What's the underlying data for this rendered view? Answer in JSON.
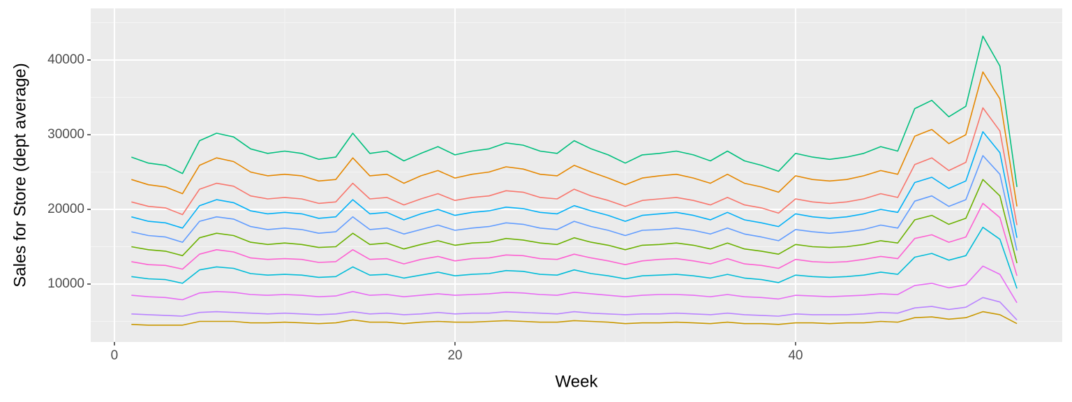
{
  "chart_data": {
    "type": "line",
    "xlabel": "Week",
    "ylabel": "Sales for Store (dept average)",
    "x": [
      1,
      2,
      3,
      4,
      5,
      6,
      7,
      8,
      9,
      10,
      11,
      12,
      13,
      14,
      15,
      16,
      17,
      18,
      19,
      20,
      21,
      22,
      23,
      24,
      25,
      26,
      27,
      28,
      29,
      30,
      31,
      32,
      33,
      34,
      35,
      36,
      37,
      38,
      39,
      40,
      41,
      42,
      43,
      44,
      45,
      46,
      47,
      48,
      49,
      50,
      51,
      52,
      53
    ],
    "xlim": [
      -1.39,
      55.66
    ],
    "ylim": [
      2243,
      46916
    ],
    "xticks": [
      0,
      20,
      40
    ],
    "yticks": [
      10000,
      20000,
      30000,
      40000
    ],
    "grid": true,
    "panel_color": "#EBEBEB",
    "series": [
      {
        "color": "#00BF7D",
        "values": [
          27000,
          26200,
          25900,
          24800,
          29200,
          30200,
          29700,
          28100,
          27500,
          27800,
          27500,
          26700,
          27000,
          30200,
          27500,
          27800,
          26500,
          27500,
          28400,
          27300,
          27800,
          28100,
          28900,
          28600,
          27800,
          27500,
          29200,
          28100,
          27300,
          26200,
          27300,
          27500,
          27800,
          27300,
          26500,
          27800,
          26500,
          25900,
          25100,
          27500,
          27000,
          26700,
          27000,
          27500,
          28400,
          27800,
          33500,
          34600,
          32400,
          33800,
          43200,
          39200,
          23000
        ]
      },
      {
        "color": "#E58700",
        "values": [
          24000,
          23300,
          23000,
          22100,
          25900,
          26900,
          26400,
          25000,
          24500,
          24700,
          24500,
          23800,
          24000,
          26900,
          24500,
          24700,
          23500,
          24500,
          25200,
          24200,
          24700,
          25000,
          25700,
          25400,
          24700,
          24500,
          25900,
          25000,
          24200,
          23300,
          24200,
          24500,
          24700,
          24200,
          23500,
          24700,
          23500,
          23000,
          22300,
          24500,
          24000,
          23800,
          24000,
          24500,
          25200,
          24700,
          29800,
          30700,
          28800,
          30000,
          38400,
          34800,
          20400
        ]
      },
      {
        "color": "#F8766D",
        "values": [
          21000,
          20400,
          20200,
          19300,
          22700,
          23500,
          23100,
          21800,
          21400,
          21600,
          21400,
          20800,
          21000,
          23500,
          21400,
          21600,
          20600,
          21400,
          22100,
          21200,
          21600,
          21800,
          22500,
          22300,
          21600,
          21400,
          22700,
          21800,
          21200,
          20400,
          21200,
          21400,
          21600,
          21200,
          20600,
          21600,
          20600,
          20200,
          19500,
          21400,
          21000,
          20800,
          21000,
          21400,
          22100,
          21600,
          26000,
          26900,
          25200,
          26300,
          33600,
          30500,
          17900
        ]
      },
      {
        "color": "#00B0F6",
        "values": [
          19000,
          18400,
          18200,
          17500,
          20500,
          21300,
          20900,
          19800,
          19400,
          19600,
          19400,
          18800,
          19000,
          21300,
          19400,
          19600,
          18600,
          19400,
          20000,
          19200,
          19600,
          19800,
          20300,
          20100,
          19600,
          19400,
          20500,
          19800,
          19200,
          18400,
          19200,
          19400,
          19600,
          19200,
          18600,
          19600,
          18600,
          18200,
          17700,
          19400,
          19000,
          18800,
          19000,
          19400,
          20000,
          19600,
          23600,
          24300,
          22800,
          23800,
          30400,
          27600,
          16200
        ]
      },
      {
        "color": "#619CFF",
        "values": [
          17000,
          16500,
          16300,
          15600,
          18400,
          19000,
          18700,
          17700,
          17300,
          17500,
          17300,
          16800,
          17000,
          19000,
          17300,
          17500,
          16700,
          17300,
          17900,
          17200,
          17500,
          17700,
          18200,
          18000,
          17500,
          17300,
          18400,
          17700,
          17200,
          16500,
          17200,
          17300,
          17500,
          17200,
          16700,
          17500,
          16700,
          16300,
          15800,
          17300,
          17000,
          16800,
          17000,
          17300,
          17900,
          17500,
          21100,
          21800,
          20400,
          21300,
          27200,
          24700,
          14500
        ]
      },
      {
        "color": "#6BB100",
        "values": [
          15000,
          14600,
          14400,
          13800,
          16200,
          16800,
          16500,
          15600,
          15300,
          15500,
          15300,
          14900,
          15000,
          16800,
          15300,
          15500,
          14700,
          15300,
          15800,
          15200,
          15500,
          15600,
          16100,
          15900,
          15500,
          15300,
          16200,
          15600,
          15200,
          14600,
          15200,
          15300,
          15500,
          15200,
          14700,
          15500,
          14700,
          14400,
          14000,
          15300,
          15000,
          14900,
          15000,
          15300,
          15800,
          15500,
          18600,
          19200,
          18000,
          18800,
          24000,
          21800,
          12800
        ]
      },
      {
        "color": "#FD61D1",
        "values": [
          13000,
          12600,
          12500,
          12000,
          14000,
          14600,
          14300,
          13500,
          13300,
          13400,
          13300,
          12900,
          13000,
          14600,
          13300,
          13400,
          12700,
          13300,
          13700,
          13100,
          13400,
          13500,
          13900,
          13800,
          13400,
          13300,
          14000,
          13500,
          13100,
          12600,
          13100,
          13300,
          13400,
          13100,
          12700,
          13400,
          12700,
          12500,
          12100,
          13300,
          13000,
          12900,
          13000,
          13300,
          13700,
          13400,
          16100,
          16600,
          15600,
          16300,
          20800,
          18900,
          11100
        ]
      },
      {
        "color": "#00BCD8",
        "values": [
          11000,
          10700,
          10600,
          10100,
          11900,
          12300,
          12100,
          11400,
          11200,
          11300,
          11200,
          10900,
          11000,
          12300,
          11200,
          11300,
          10800,
          11200,
          11600,
          11100,
          11300,
          11400,
          11800,
          11700,
          11300,
          11200,
          11900,
          11400,
          11100,
          10700,
          11100,
          11200,
          11300,
          11100,
          10800,
          11300,
          10800,
          10600,
          10200,
          11200,
          11000,
          10900,
          11000,
          11200,
          11600,
          11300,
          13600,
          14100,
          13200,
          13800,
          17600,
          16000,
          9400
        ]
      },
      {
        "color": "#E76BF3",
        "values": [
          8500,
          8300,
          8200,
          7900,
          8800,
          9000,
          8900,
          8600,
          8500,
          8600,
          8500,
          8300,
          8400,
          9000,
          8500,
          8600,
          8300,
          8500,
          8700,
          8500,
          8600,
          8700,
          8900,
          8800,
          8600,
          8500,
          8900,
          8700,
          8500,
          8300,
          8500,
          8600,
          8600,
          8500,
          8300,
          8600,
          8300,
          8200,
          8000,
          8500,
          8400,
          8300,
          8400,
          8500,
          8700,
          8600,
          9800,
          10100,
          9500,
          9900,
          12400,
          11300,
          7500
        ]
      },
      {
        "color": "#B983FF",
        "values": [
          6000,
          5900,
          5800,
          5700,
          6200,
          6300,
          6200,
          6100,
          6000,
          6100,
          6000,
          5900,
          6000,
          6300,
          6000,
          6100,
          5900,
          6000,
          6200,
          6000,
          6100,
          6100,
          6300,
          6200,
          6100,
          6000,
          6300,
          6100,
          6000,
          5900,
          6000,
          6000,
          6100,
          6000,
          5900,
          6100,
          5900,
          5800,
          5700,
          6000,
          5900,
          5900,
          5900,
          6000,
          6200,
          6100,
          6800,
          7000,
          6600,
          6900,
          8200,
          7600,
          5200
        ]
      },
      {
        "color": "#C99800",
        "values": [
          4600,
          4500,
          4500,
          4500,
          5000,
          5000,
          5000,
          4800,
          4800,
          4900,
          4800,
          4700,
          4800,
          5200,
          4900,
          4900,
          4700,
          4900,
          5000,
          4900,
          4900,
          5000,
          5100,
          5000,
          4900,
          4900,
          5100,
          5000,
          4900,
          4700,
          4800,
          4800,
          4900,
          4800,
          4700,
          4900,
          4700,
          4700,
          4600,
          4800,
          4800,
          4700,
          4800,
          4800,
          5000,
          4900,
          5500,
          5600,
          5300,
          5500,
          6300,
          5900,
          4700
        ]
      }
    ]
  }
}
